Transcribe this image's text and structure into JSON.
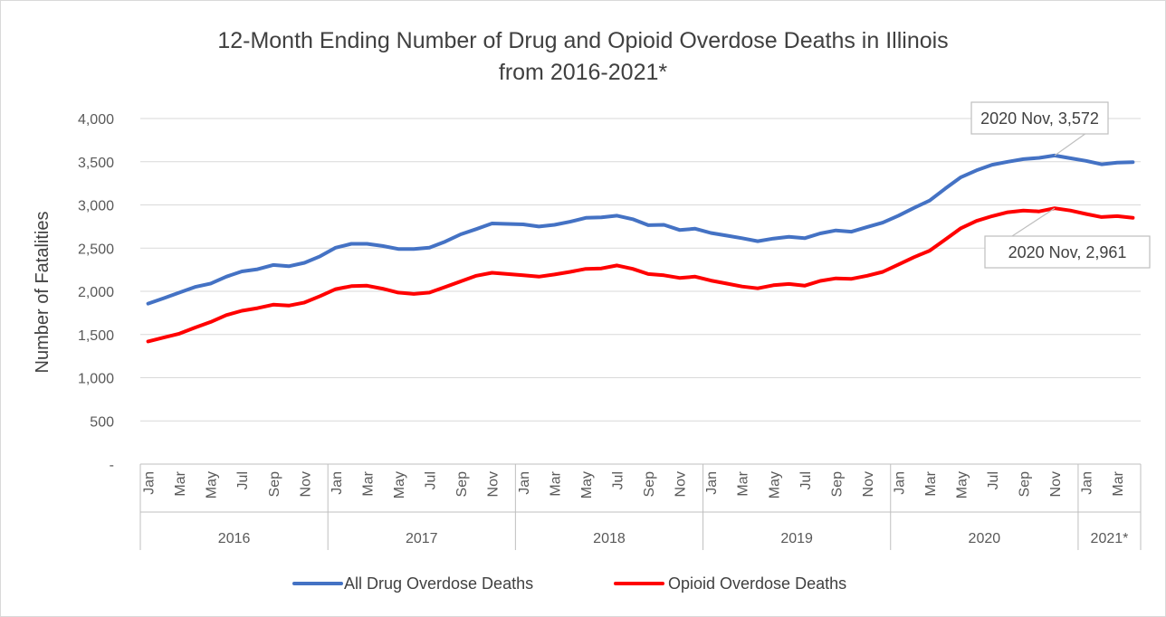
{
  "chart_data": {
    "type": "line",
    "title": "12-Month Ending Number of Drug and Opioid Overdose Deaths in Illinois",
    "title_line2": "from 2016-2021*",
    "ylabel": "Number of Fatalities",
    "ylim": [
      0,
      4000
    ],
    "y_ticks": [
      {
        "value": 0,
        "label": "-"
      },
      {
        "value": 500,
        "label": "500"
      },
      {
        "value": 1000,
        "label": "1,000"
      },
      {
        "value": 1500,
        "label": "1,500"
      },
      {
        "value": 2000,
        "label": "2,000"
      },
      {
        "value": 2500,
        "label": "2,500"
      },
      {
        "value": 3000,
        "label": "3,000"
      },
      {
        "value": 3500,
        "label": "3,500"
      },
      {
        "value": 4000,
        "label": "4,000"
      }
    ],
    "gridlines": true,
    "years": [
      {
        "label": "2016",
        "months": 12
      },
      {
        "label": "2017",
        "months": 12
      },
      {
        "label": "2018",
        "months": 12
      },
      {
        "label": "2019",
        "months": 12
      },
      {
        "label": "2020",
        "months": 12
      },
      {
        "label": "2021*",
        "months": 4
      }
    ],
    "month_labels": [
      "Jan",
      "",
      "Mar",
      "",
      "May",
      "",
      "Jul",
      "",
      "Sep",
      "",
      "Nov",
      "",
      "Jan",
      "",
      "Mar",
      "",
      "May",
      "",
      "Jul",
      "",
      "Sep",
      "",
      "Nov",
      "",
      "Jan",
      "",
      "Mar",
      "",
      "May",
      "",
      "Jul",
      "",
      "Sep",
      "",
      "Nov",
      "",
      "Jan",
      "",
      "Mar",
      "",
      "May",
      "",
      "Jul",
      "",
      "Sep",
      "",
      "Nov",
      "",
      "Jan",
      "",
      "Mar",
      "",
      "May",
      "",
      "Jul",
      "",
      "Sep",
      "",
      "Nov",
      "",
      "Jan",
      "",
      "Mar",
      ""
    ],
    "series": [
      {
        "name": "All Drug Overdose Deaths",
        "color": "#4472C4",
        "values": [
          1858,
          1920,
          1985,
          2050,
          2090,
          2170,
          2230,
          2255,
          2305,
          2290,
          2330,
          2405,
          2505,
          2550,
          2550,
          2525,
          2490,
          2490,
          2505,
          2575,
          2660,
          2720,
          2785,
          2780,
          2775,
          2750,
          2770,
          2805,
          2850,
          2855,
          2875,
          2835,
          2765,
          2770,
          2710,
          2725,
          2675,
          2645,
          2615,
          2580,
          2610,
          2630,
          2615,
          2670,
          2705,
          2690,
          2745,
          2795,
          2875,
          2965,
          3050,
          3190,
          3320,
          3400,
          3465,
          3500,
          3530,
          3545,
          3572,
          3540,
          3510,
          3470,
          3490,
          3495
        ]
      },
      {
        "name": "Opioid Overdose Deaths",
        "color": "#FF0000",
        "values": [
          1420,
          1465,
          1510,
          1580,
          1645,
          1725,
          1775,
          1805,
          1845,
          1835,
          1870,
          1945,
          2025,
          2060,
          2065,
          2030,
          1985,
          1970,
          1985,
          2050,
          2115,
          2180,
          2215,
          2200,
          2185,
          2170,
          2195,
          2225,
          2260,
          2265,
          2300,
          2260,
          2200,
          2185,
          2155,
          2170,
          2125,
          2090,
          2055,
          2035,
          2070,
          2085,
          2065,
          2120,
          2150,
          2145,
          2180,
          2225,
          2310,
          2395,
          2470,
          2600,
          2730,
          2815,
          2870,
          2915,
          2935,
          2925,
          2961,
          2935,
          2895,
          2860,
          2870,
          2850
        ]
      }
    ],
    "annotations": [
      {
        "series": 0,
        "x_index": 58,
        "text": "2020 Nov,  3,572"
      },
      {
        "series": 1,
        "x_index": 58,
        "text": "2020 Nov,  2,961"
      }
    ],
    "legend_position": "bottom"
  }
}
